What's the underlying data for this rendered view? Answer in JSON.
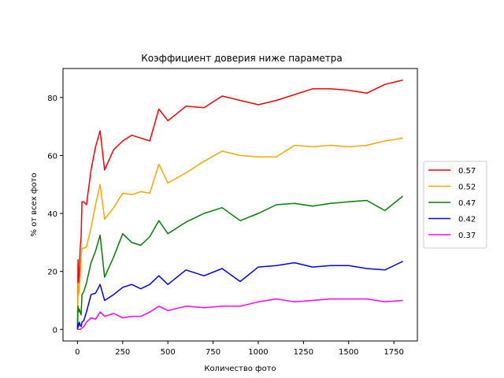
{
  "chart_data": {
    "type": "line",
    "title": "Коэффициент доверия ниже параметра",
    "xlabel": "Количество фото",
    "ylabel": "% от всех фото",
    "xlim": [
      -80,
      1880
    ],
    "ylim": [
      -4,
      90
    ],
    "xticks": [
      0,
      250,
      500,
      750,
      1000,
      1250,
      1500,
      1750
    ],
    "yticks": [
      0,
      20,
      40,
      60,
      80
    ],
    "grid": false,
    "legend_position": "center-right-outside",
    "series": [
      {
        "name": "0.57",
        "color": "#ff0000",
        "points": [
          [
            0,
            0
          ],
          [
            3,
            24
          ],
          [
            6,
            16
          ],
          [
            10,
            20
          ],
          [
            15,
            28
          ],
          [
            20,
            32
          ],
          [
            25,
            44
          ],
          [
            35,
            44
          ],
          [
            50,
            43
          ],
          [
            75,
            55
          ],
          [
            100,
            63
          ],
          [
            125,
            68.5
          ],
          [
            150,
            55
          ],
          [
            200,
            62
          ],
          [
            250,
            65
          ],
          [
            300,
            67
          ],
          [
            350,
            66
          ],
          [
            400,
            65
          ],
          [
            450,
            76
          ],
          [
            500,
            72
          ],
          [
            600,
            77
          ],
          [
            700,
            76.5
          ],
          [
            800,
            80.5
          ],
          [
            900,
            79
          ],
          [
            1000,
            77.5
          ],
          [
            1100,
            79
          ],
          [
            1200,
            81
          ],
          [
            1300,
            83
          ],
          [
            1400,
            83
          ],
          [
            1500,
            82.5
          ],
          [
            1600,
            81.5
          ],
          [
            1700,
            84.5
          ],
          [
            1800,
            86
          ]
        ]
      },
      {
        "name": "0.52",
        "color": "#ffa500",
        "points": [
          [
            0,
            0
          ],
          [
            3,
            16
          ],
          [
            6,
            12
          ],
          [
            10,
            14
          ],
          [
            15,
            19
          ],
          [
            20,
            25
          ],
          [
            25,
            28
          ],
          [
            35,
            28
          ],
          [
            50,
            28.5
          ],
          [
            75,
            35
          ],
          [
            100,
            43
          ],
          [
            125,
            50
          ],
          [
            150,
            38
          ],
          [
            200,
            42
          ],
          [
            250,
            47
          ],
          [
            300,
            46.5
          ],
          [
            350,
            47.5
          ],
          [
            400,
            47
          ],
          [
            450,
            57
          ],
          [
            500,
            50.5
          ],
          [
            600,
            54
          ],
          [
            700,
            58
          ],
          [
            800,
            61.5
          ],
          [
            900,
            60
          ],
          [
            1000,
            59.5
          ],
          [
            1100,
            59.5
          ],
          [
            1200,
            63.5
          ],
          [
            1300,
            63
          ],
          [
            1400,
            63.5
          ],
          [
            1500,
            63
          ],
          [
            1600,
            63.5
          ],
          [
            1700,
            65
          ],
          [
            1800,
            66
          ]
        ]
      },
      {
        "name": "0.47",
        "color": "#008000",
        "points": [
          [
            0,
            0
          ],
          [
            3,
            8
          ],
          [
            6,
            6
          ],
          [
            10,
            7
          ],
          [
            15,
            6
          ],
          [
            20,
            5
          ],
          [
            25,
            12
          ],
          [
            35,
            13
          ],
          [
            50,
            16
          ],
          [
            75,
            23
          ],
          [
            100,
            27
          ],
          [
            125,
            32.5
          ],
          [
            150,
            18
          ],
          [
            200,
            25
          ],
          [
            250,
            33
          ],
          [
            300,
            30
          ],
          [
            350,
            29
          ],
          [
            400,
            32
          ],
          [
            450,
            37.5
          ],
          [
            500,
            33
          ],
          [
            600,
            37
          ],
          [
            700,
            40
          ],
          [
            800,
            42
          ],
          [
            900,
            37.5
          ],
          [
            1000,
            40
          ],
          [
            1100,
            43
          ],
          [
            1200,
            43.5
          ],
          [
            1300,
            42.5
          ],
          [
            1400,
            43.5
          ],
          [
            1500,
            44
          ],
          [
            1600,
            44.5
          ],
          [
            1700,
            41
          ],
          [
            1800,
            46
          ]
        ]
      },
      {
        "name": "0.42",
        "color": "#0000ff",
        "points": [
          [
            0,
            0
          ],
          [
            3,
            2
          ],
          [
            6,
            1
          ],
          [
            10,
            2.5
          ],
          [
            15,
            1.5
          ],
          [
            20,
            1
          ],
          [
            25,
            2.5
          ],
          [
            35,
            3
          ],
          [
            50,
            6
          ],
          [
            75,
            12
          ],
          [
            100,
            12.5
          ],
          [
            125,
            15.5
          ],
          [
            150,
            10
          ],
          [
            200,
            12
          ],
          [
            250,
            14.5
          ],
          [
            300,
            15.5
          ],
          [
            350,
            14
          ],
          [
            400,
            15.5
          ],
          [
            450,
            18.5
          ],
          [
            500,
            15.5
          ],
          [
            600,
            20.5
          ],
          [
            700,
            18.5
          ],
          [
            800,
            21
          ],
          [
            900,
            16.5
          ],
          [
            1000,
            21.5
          ],
          [
            1100,
            22
          ],
          [
            1200,
            23
          ],
          [
            1300,
            21.5
          ],
          [
            1400,
            22
          ],
          [
            1500,
            22
          ],
          [
            1600,
            21
          ],
          [
            1700,
            20.5
          ],
          [
            1800,
            23.5
          ]
        ]
      },
      {
        "name": "0.37",
        "color": "#ff00ff",
        "points": [
          [
            0,
            0
          ],
          [
            3,
            0
          ],
          [
            6,
            0
          ],
          [
            10,
            0
          ],
          [
            15,
            0
          ],
          [
            20,
            0.3
          ],
          [
            25,
            0.5
          ],
          [
            35,
            1
          ],
          [
            50,
            2.5
          ],
          [
            75,
            4
          ],
          [
            100,
            3.5
          ],
          [
            125,
            6
          ],
          [
            150,
            4.5
          ],
          [
            200,
            5.5
          ],
          [
            250,
            4
          ],
          [
            300,
            4.5
          ],
          [
            350,
            4.5
          ],
          [
            400,
            6
          ],
          [
            450,
            8
          ],
          [
            500,
            6.5
          ],
          [
            600,
            8
          ],
          [
            700,
            7.5
          ],
          [
            800,
            8
          ],
          [
            900,
            8
          ],
          [
            1000,
            9.5
          ],
          [
            1100,
            10.5
          ],
          [
            1200,
            9.5
          ],
          [
            1300,
            10
          ],
          [
            1400,
            10.5
          ],
          [
            1500,
            10.5
          ],
          [
            1600,
            10.5
          ],
          [
            1700,
            9.5
          ],
          [
            1800,
            10
          ]
        ]
      }
    ]
  }
}
